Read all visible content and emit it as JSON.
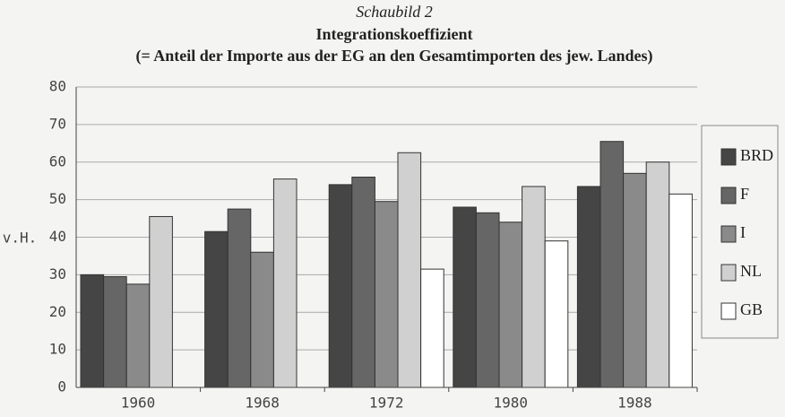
{
  "chart_data": {
    "type": "bar",
    "title": "Schaubild 2",
    "subtitle": "Integrationskoeffizient",
    "subtitle2": "(= Anteil der Importe aus der EG an den Gesamtimporten des jew. Landes)",
    "y_label": "v.H.",
    "categories": [
      "1960",
      "1968",
      "1972",
      "1980",
      "1988"
    ],
    "series": [
      {
        "name": "BRD",
        "color": "#454545",
        "values": [
          30,
          41.5,
          54,
          48,
          53.5
        ]
      },
      {
        "name": "F",
        "color": "#666666",
        "values": [
          29.5,
          47.5,
          56,
          46.5,
          65.5
        ]
      },
      {
        "name": "I",
        "color": "#8a8a8a",
        "values": [
          27.5,
          36,
          49.5,
          44,
          57
        ]
      },
      {
        "name": "NL",
        "color": "#d0d0d0",
        "values": [
          45.5,
          55.5,
          62.5,
          53.5,
          60
        ]
      },
      {
        "name": "GB",
        "color": "#ffffff",
        "values": [
          null,
          null,
          31.5,
          39,
          51.5
        ]
      }
    ],
    "ylim": [
      0,
      80
    ],
    "yticks": [
      0,
      10,
      20,
      30,
      40,
      50,
      60,
      70,
      80
    ],
    "grid": true,
    "legend": "right"
  }
}
